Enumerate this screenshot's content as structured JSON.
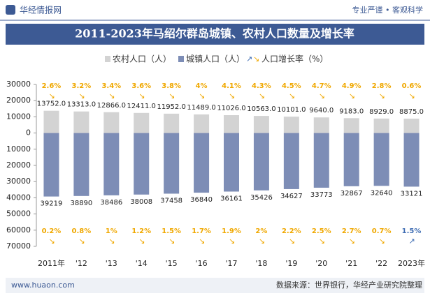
{
  "header": {
    "logo": "华经情报网",
    "slogan": "专业严谨 • 客观科学"
  },
  "footer": {
    "website": "www.huaon.com",
    "source": "数据来源：世界银行，华经产业研究院整理"
  },
  "chart_data": {
    "type": "bar",
    "title": "2011-2023年马绍尔群岛城镇、农村人口数量及增长率",
    "categories": [
      "2011年",
      "'12",
      "'13",
      "'14",
      "'15",
      "'16",
      "'17",
      "'18",
      "'19",
      "'20",
      "'21",
      "'22",
      "2023年"
    ],
    "series": [
      {
        "name": "农村人口（人）",
        "color": "#d3d3d3",
        "values": [
          13752,
          13313,
          12866,
          12411,
          11952,
          11489,
          11026,
          10563,
          10101,
          9640,
          9183,
          8929,
          8875
        ],
        "value_labels": [
          "13752.0",
          "13313.0",
          "12866.0",
          "12411.0",
          "11952.0",
          "11489.0",
          "11026.0",
          "10563.0",
          "10101.0",
          "9640.0",
          "9183.0",
          "8929.0",
          "8875.0"
        ],
        "growth": [
          -2.6,
          -3.2,
          -3.4,
          -3.6,
          -3.8,
          -4,
          -4.1,
          -4.3,
          -4.5,
          -4.7,
          -4.9,
          -2.8,
          -0.6
        ],
        "growth_labels": [
          "2.6%",
          "3.2%",
          "3.4%",
          "3.6%",
          "3.8%",
          "4%",
          "4.1%",
          "4.3%",
          "4.5%",
          "4.7%",
          "4.9%",
          "2.8%",
          "0.6%"
        ]
      },
      {
        "name": "城镇人口（人）",
        "color": "#7d8db6",
        "values": [
          -39219,
          -38890,
          -38486,
          -38008,
          -37458,
          -36840,
          -36161,
          -35426,
          -34627,
          -33773,
          -32867,
          -32640,
          -33121
        ],
        "value_labels": [
          "39219",
          "38890",
          "38486",
          "38008",
          "37458",
          "36840",
          "36161",
          "35426",
          "34627",
          "33773",
          "32867",
          "32640",
          "33121"
        ],
        "growth": [
          -0.2,
          -0.8,
          -1,
          -1.2,
          -1.5,
          -1.7,
          -1.9,
          -2,
          -2.2,
          -2.5,
          -2.7,
          -0.7,
          1.5
        ],
        "growth_labels": [
          "0.2%",
          "0.8%",
          "1%",
          "1.2%",
          "1.5%",
          "1.7%",
          "1.9%",
          "2%",
          "2.2%",
          "2.5%",
          "2.7%",
          "0.7%",
          "1.5%"
        ]
      }
    ],
    "growth_legend": "人口增长率（%）",
    "growth_colors": {
      "down": "#f0a800",
      "up": "#3f6db3"
    },
    "ylim": [
      -70000,
      30000
    ],
    "yticks": [
      30000,
      20000,
      10000,
      0,
      {
        "value": -10000,
        "label": "10000"
      },
      {
        "value": -20000,
        "label": "20000"
      },
      {
        "value": -30000,
        "label": "30000"
      },
      {
        "value": -40000,
        "label": "40000"
      },
      {
        "value": -50000,
        "label": "50000"
      },
      {
        "value": -60000,
        "label": "60000"
      },
      {
        "value": -70000,
        "label": "70000"
      }
    ]
  }
}
